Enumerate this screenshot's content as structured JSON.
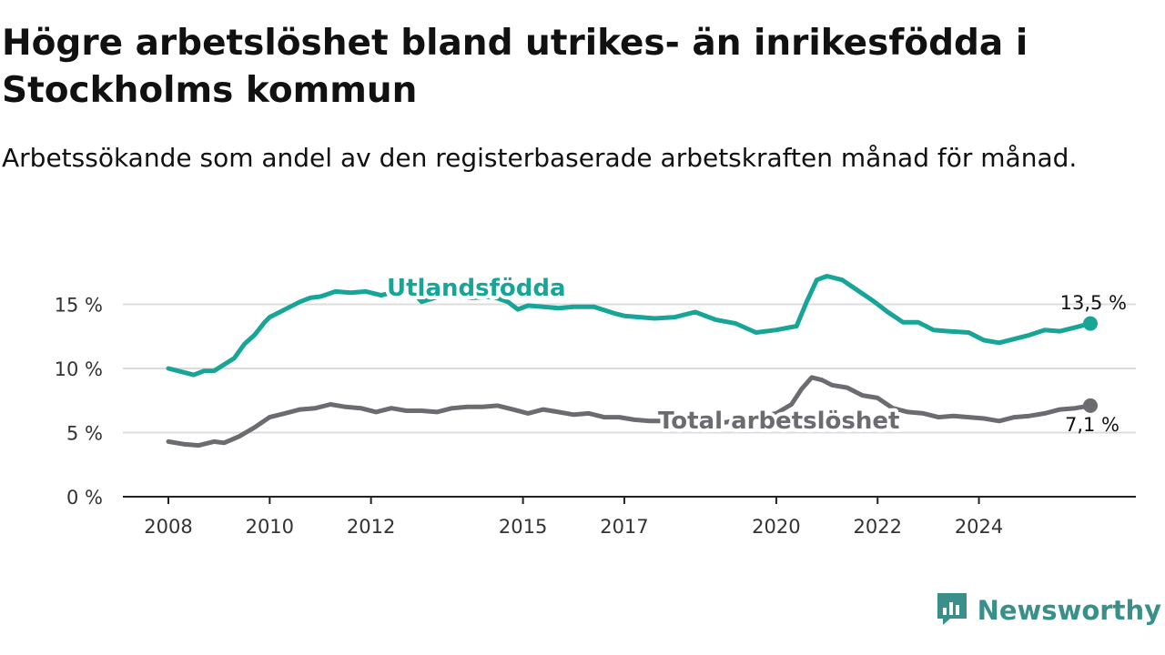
{
  "title": "Högre arbetslöshet bland utrikes- än inrikesfödda i Stockholms kommun",
  "subtitle": "Arbetssökande som andel av den registerbaserade arbetskraften månad för månad.",
  "brand": {
    "name": "Newsworthy",
    "icon": "newsworthy-logo-icon"
  },
  "colors": {
    "utlandsfodda": "#17a598",
    "total": "#6b6b70",
    "axis": "#222222",
    "grid": "#dcdcdc",
    "brand": "#3a8f8a"
  },
  "chart_data": {
    "type": "line",
    "xlim": [
      2008,
      2025
    ],
    "ylim": [
      0,
      20
    ],
    "x_ticks": [
      2008,
      2010,
      2012,
      2015,
      2017,
      2020,
      2022,
      2024
    ],
    "x_tick_labels": [
      "2008",
      "2010",
      "2012",
      "2015",
      "2017",
      "2020",
      "2022",
      "2024"
    ],
    "y_ticks": [
      0,
      5,
      10,
      15
    ],
    "y_tick_labels": [
      "0 %",
      "5 %",
      "10 %",
      "15 %"
    ],
    "grid": "horizontal",
    "series": [
      {
        "name": "Utlandsfödda",
        "color": "#17a598",
        "end_label": "13,5 %",
        "points": [
          [
            2008.0,
            10.0
          ],
          [
            2008.2,
            9.8
          ],
          [
            2008.5,
            9.5
          ],
          [
            2008.7,
            9.8
          ],
          [
            2008.9,
            9.8
          ],
          [
            2009.1,
            10.3
          ],
          [
            2009.3,
            10.8
          ],
          [
            2009.5,
            11.9
          ],
          [
            2009.7,
            12.6
          ],
          [
            2009.9,
            13.6
          ],
          [
            2010.0,
            14.0
          ],
          [
            2010.2,
            14.4
          ],
          [
            2010.4,
            14.8
          ],
          [
            2010.6,
            15.2
          ],
          [
            2010.8,
            15.5
          ],
          [
            2011.0,
            15.6
          ],
          [
            2011.3,
            16.0
          ],
          [
            2011.6,
            15.9
          ],
          [
            2011.9,
            16.0
          ],
          [
            2012.2,
            15.7
          ],
          [
            2012.5,
            16.0
          ],
          [
            2012.8,
            16.1
          ],
          [
            2013.0,
            15.2
          ],
          [
            2013.5,
            15.8
          ],
          [
            2014.0,
            15.5
          ],
          [
            2014.4,
            15.6
          ],
          [
            2014.7,
            15.2
          ],
          [
            2014.9,
            14.6
          ],
          [
            2015.1,
            14.9
          ],
          [
            2015.4,
            14.8
          ],
          [
            2015.7,
            14.7
          ],
          [
            2016.0,
            14.8
          ],
          [
            2016.4,
            14.8
          ],
          [
            2016.8,
            14.3
          ],
          [
            2017.0,
            14.1
          ],
          [
            2017.3,
            14.0
          ],
          [
            2017.6,
            13.9
          ],
          [
            2018.0,
            14.0
          ],
          [
            2018.4,
            14.4
          ],
          [
            2018.8,
            13.8
          ],
          [
            2019.2,
            13.5
          ],
          [
            2019.6,
            12.8
          ],
          [
            2020.0,
            13.0
          ],
          [
            2020.4,
            13.3
          ],
          [
            2020.6,
            15.2
          ],
          [
            2020.8,
            16.9
          ],
          [
            2021.0,
            17.2
          ],
          [
            2021.3,
            16.9
          ],
          [
            2021.6,
            16.1
          ],
          [
            2021.9,
            15.3
          ],
          [
            2022.2,
            14.4
          ],
          [
            2022.5,
            13.6
          ],
          [
            2022.8,
            13.6
          ],
          [
            2023.1,
            13.0
          ],
          [
            2023.4,
            12.9
          ],
          [
            2023.8,
            12.8
          ],
          [
            2024.1,
            12.2
          ],
          [
            2024.4,
            12.0
          ],
          [
            2024.7,
            12.3
          ],
          [
            2025.0,
            12.6
          ],
          [
            2025.3,
            13.0
          ],
          [
            2025.6,
            12.9
          ],
          [
            2025.9,
            13.2
          ],
          [
            2026.2,
            13.5
          ]
        ]
      },
      {
        "name": "Total arbetslöshet",
        "color": "#6b6b70",
        "end_label": "7,1 %",
        "points": [
          [
            2008.0,
            4.3
          ],
          [
            2008.3,
            4.1
          ],
          [
            2008.6,
            4.0
          ],
          [
            2008.9,
            4.3
          ],
          [
            2009.1,
            4.2
          ],
          [
            2009.4,
            4.7
          ],
          [
            2009.7,
            5.4
          ],
          [
            2010.0,
            6.2
          ],
          [
            2010.3,
            6.5
          ],
          [
            2010.6,
            6.8
          ],
          [
            2010.9,
            6.9
          ],
          [
            2011.2,
            7.2
          ],
          [
            2011.5,
            7.0
          ],
          [
            2011.8,
            6.9
          ],
          [
            2012.1,
            6.6
          ],
          [
            2012.4,
            6.9
          ],
          [
            2012.7,
            6.7
          ],
          [
            2013.0,
            6.7
          ],
          [
            2013.3,
            6.6
          ],
          [
            2013.6,
            6.9
          ],
          [
            2013.9,
            7.0
          ],
          [
            2014.2,
            7.0
          ],
          [
            2014.5,
            7.1
          ],
          [
            2014.8,
            6.8
          ],
          [
            2015.1,
            6.5
          ],
          [
            2015.4,
            6.8
          ],
          [
            2015.7,
            6.6
          ],
          [
            2016.0,
            6.4
          ],
          [
            2016.3,
            6.5
          ],
          [
            2016.6,
            6.2
          ],
          [
            2016.9,
            6.2
          ],
          [
            2017.2,
            6.0
          ],
          [
            2017.5,
            5.9
          ],
          [
            2018.0,
            5.9
          ],
          [
            2019.0,
            5.8
          ],
          [
            2020.0,
            6.5
          ],
          [
            2020.3,
            7.2
          ],
          [
            2020.5,
            8.4
          ],
          [
            2020.7,
            9.3
          ],
          [
            2020.9,
            9.1
          ],
          [
            2021.1,
            8.7
          ],
          [
            2021.4,
            8.5
          ],
          [
            2021.7,
            7.9
          ],
          [
            2022.0,
            7.7
          ],
          [
            2022.3,
            6.9
          ],
          [
            2022.6,
            6.6
          ],
          [
            2022.9,
            6.5
          ],
          [
            2023.2,
            6.2
          ],
          [
            2023.5,
            6.3
          ],
          [
            2023.8,
            6.2
          ],
          [
            2024.1,
            6.1
          ],
          [
            2024.4,
            5.9
          ],
          [
            2024.7,
            6.2
          ],
          [
            2025.0,
            6.3
          ],
          [
            2025.3,
            6.5
          ],
          [
            2025.6,
            6.8
          ],
          [
            2025.9,
            6.9
          ],
          [
            2026.2,
            7.1
          ]
        ]
      }
    ]
  }
}
